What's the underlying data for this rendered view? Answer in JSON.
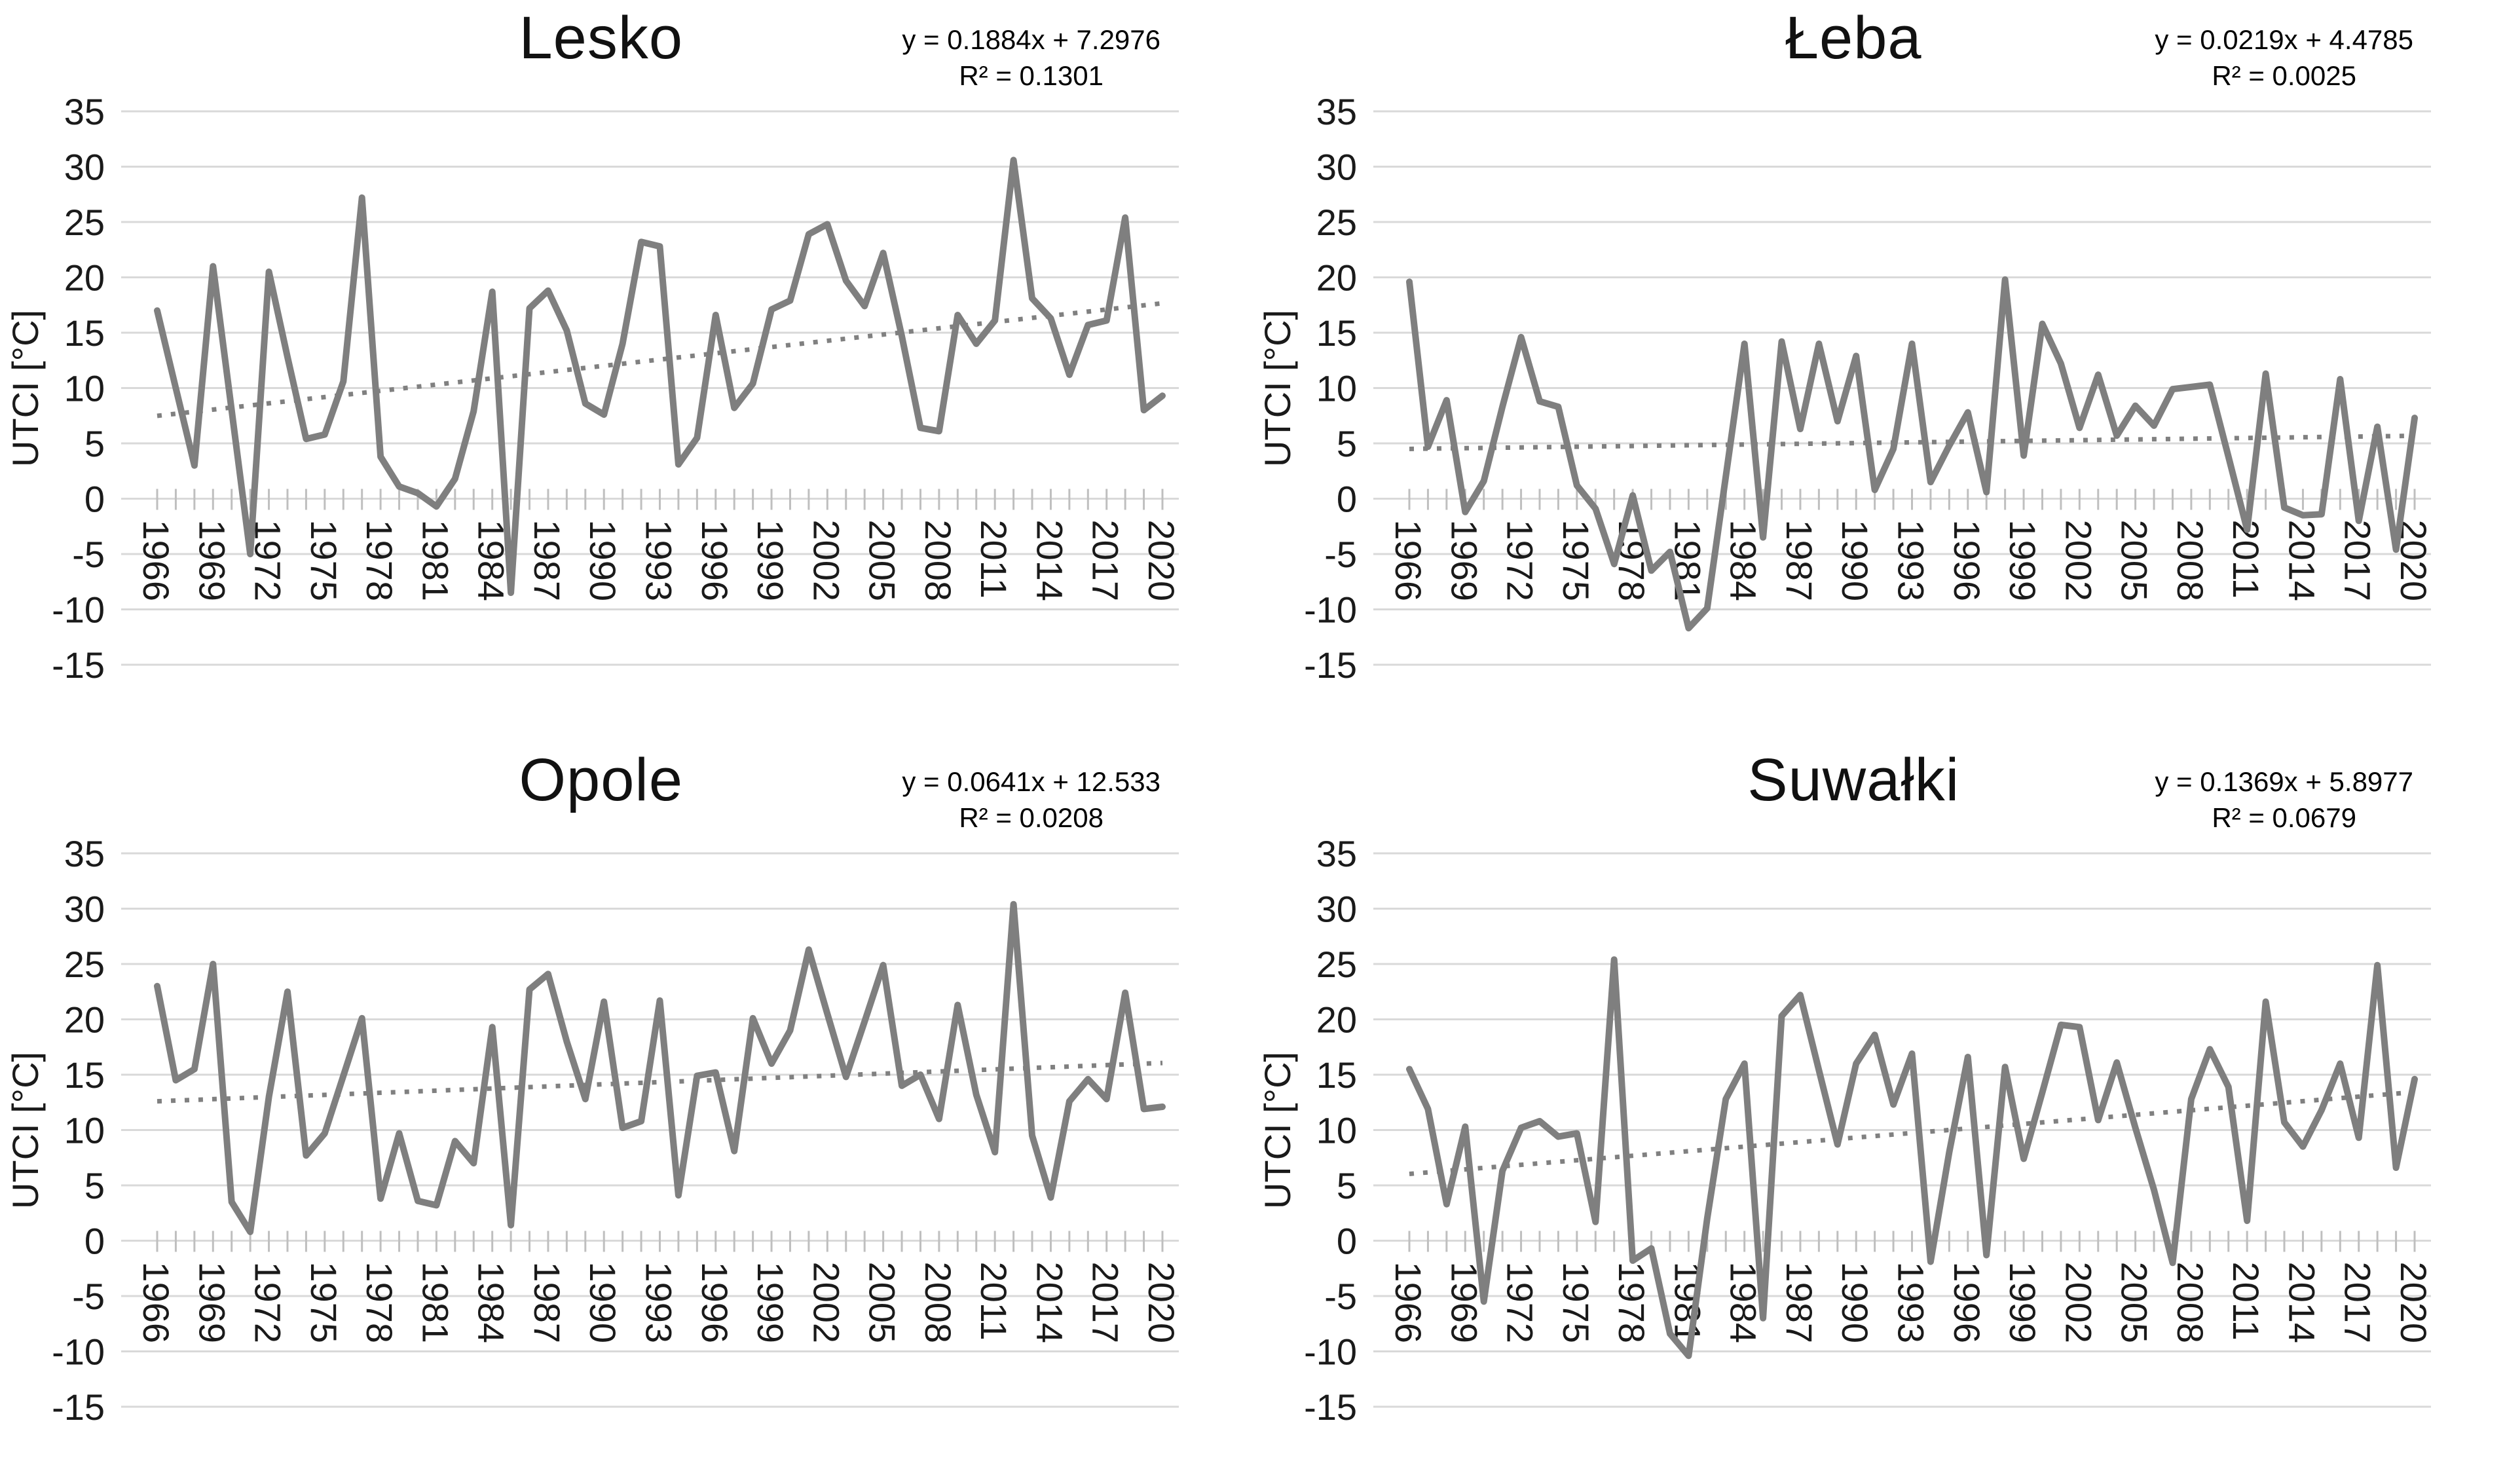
{
  "styles": {
    "series_color": "#7f7f7f",
    "trend_color": "#808080",
    "grid_color": "#d9d9d9",
    "tick_color": "#bfbfbf",
    "text_color": "#1a1a1a"
  },
  "axis": {
    "y_label": "UTCI [°C]",
    "y_ticks": [
      35,
      30,
      25,
      20,
      15,
      10,
      5,
      0,
      -5,
      -10,
      -15
    ],
    "x_labels": [
      1966,
      1969,
      1972,
      1975,
      1978,
      1981,
      1984,
      1987,
      1990,
      1993,
      1996,
      1999,
      2002,
      2005,
      2008,
      2011,
      2014,
      2017,
      2020
    ],
    "x_start": 1966,
    "x_end": 2020
  },
  "chart_data": [
    {
      "type": "line",
      "title": "Lesko",
      "equation": "y = 0.1884x + 7.2976",
      "r2": "R² = 0.1301",
      "trend": {
        "slope": 0.1884,
        "intercept": 7.2976
      },
      "ylabel": "UTCI [°C]",
      "xlabel": "",
      "ylim": [
        -15,
        35
      ],
      "grid": "horizontal",
      "legend": "none",
      "x_range": [
        1966,
        2020
      ],
      "values": [
        17.0,
        10.0,
        3.0,
        21.0,
        8.0,
        -5.0,
        20.5,
        12.8,
        5.4,
        5.8,
        10.6,
        27.2,
        3.8,
        1.1,
        0.5,
        -0.7,
        1.8,
        7.9,
        18.7,
        -8.5,
        17.2,
        18.8,
        15.2,
        8.6,
        7.6,
        14.0,
        23.2,
        22.8,
        3.1,
        5.5,
        16.6,
        8.2,
        10.4,
        17.1,
        17.9,
        23.9,
        24.8,
        19.7,
        17.4,
        22.2,
        14.7,
        6.4,
        6.1,
        16.6,
        14.0,
        16.1,
        30.6,
        18.1,
        16.3,
        11.2,
        15.7,
        16.1,
        25.4,
        8.0,
        9.3
      ]
    },
    {
      "type": "line",
      "title": "Łeba",
      "equation": "y = 0.0219x + 4.4785",
      "r2": "R² = 0.0025",
      "trend": {
        "slope": 0.0219,
        "intercept": 4.4785
      },
      "ylabel": "UTCI [°C]",
      "xlabel": "",
      "ylim": [
        -15,
        35
      ],
      "grid": "horizontal",
      "legend": "none",
      "x_range": [
        1966,
        2020
      ],
      "values": [
        19.6,
        4.7,
        8.9,
        -1.2,
        1.6,
        8.3,
        14.6,
        8.8,
        8.3,
        1.2,
        -0.9,
        -5.9,
        0.3,
        -6.5,
        -4.8,
        -11.7,
        -9.9,
        2.0,
        14.0,
        -3.5,
        14.2,
        6.3,
        14.0,
        7.0,
        12.9,
        0.8,
        4.5,
        14.0,
        1.5,
        4.8,
        7.8,
        0.6,
        19.8,
        3.9,
        15.8,
        12.2,
        6.4,
        11.2,
        5.7,
        8.4,
        6.6,
        9.9,
        10.1,
        10.3,
        3.8,
        -2.8,
        11.3,
        -0.8,
        -1.5,
        -1.4,
        10.8,
        -2.0,
        6.5,
        -4.6,
        7.3
      ]
    },
    {
      "type": "line",
      "title": "Opole",
      "equation": "y = 0.0641x + 12.533",
      "r2": "R² = 0.0208",
      "trend": {
        "slope": 0.0641,
        "intercept": 12.533
      },
      "ylabel": "UTCI [°C]",
      "xlabel": "",
      "ylim": [
        -15,
        35
      ],
      "grid": "horizontal",
      "legend": "none",
      "x_range": [
        1966,
        2020
      ],
      "values": [
        23.0,
        14.5,
        15.5,
        25.0,
        3.5,
        0.8,
        13.0,
        22.5,
        7.7,
        9.7,
        14.9,
        20.1,
        3.8,
        9.7,
        3.6,
        3.2,
        9.0,
        7.0,
        19.3,
        1.4,
        22.7,
        24.1,
        18.0,
        12.8,
        21.6,
        10.2,
        10.8,
        21.7,
        4.1,
        14.9,
        15.2,
        8.1,
        20.1,
        16.0,
        19.0,
        26.3,
        20.5,
        14.8,
        19.8,
        24.9,
        14.0,
        15.0,
        11.0,
        21.3,
        13.2,
        8.0,
        30.4,
        9.5,
        3.9,
        12.6,
        14.6,
        12.8,
        22.4,
        11.9,
        12.1
      ]
    },
    {
      "type": "line",
      "title": "Suwałki",
      "equation": "y = 0.1369x + 5.8977",
      "r2": "R² = 0.0679",
      "trend": {
        "slope": 0.1369,
        "intercept": 5.8977
      },
      "ylabel": "UTCI [°C]",
      "xlabel": "",
      "ylim": [
        -15,
        35
      ],
      "grid": "horizontal",
      "legend": "none",
      "x_range": [
        1966,
        2020
      ],
      "values": [
        15.5,
        11.9,
        3.3,
        10.3,
        -5.5,
        6.3,
        10.2,
        10.8,
        9.4,
        9.7,
        1.7,
        25.4,
        -1.8,
        -0.7,
        -8.4,
        -10.4,
        2.0,
        12.8,
        16.0,
        -7.0,
        20.3,
        22.2,
        15.4,
        8.7,
        16.0,
        18.6,
        12.3,
        16.9,
        -1.9,
        8.0,
        16.6,
        -1.3,
        15.7,
        7.4,
        13.4,
        19.5,
        19.3,
        10.9,
        16.1,
        10.2,
        4.6,
        -2.0,
        12.8,
        17.3,
        13.9,
        1.8,
        21.6,
        10.7,
        8.5,
        11.8,
        16.0,
        9.3,
        24.9,
        6.6,
        14.6
      ]
    }
  ]
}
